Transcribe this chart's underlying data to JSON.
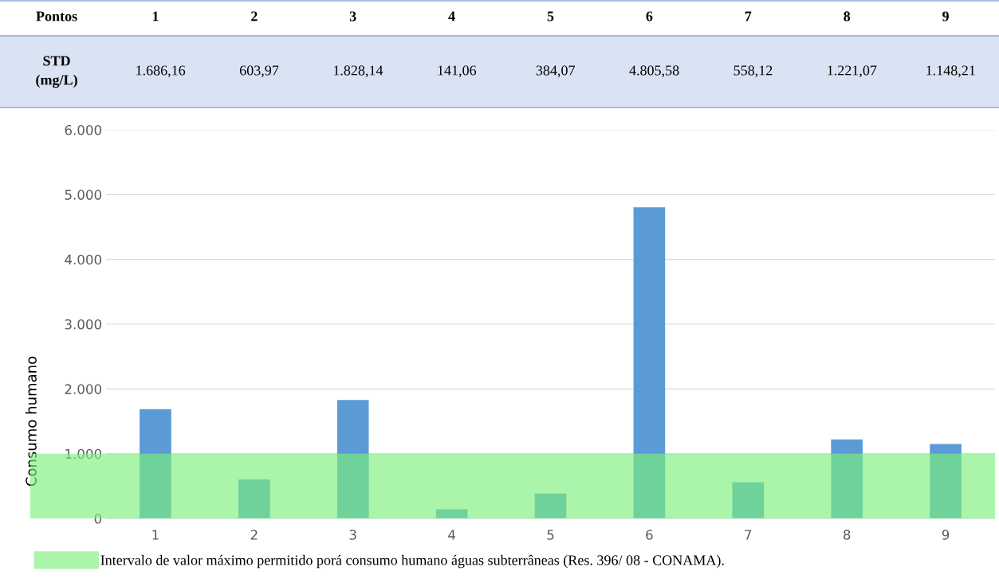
{
  "chart_data": {
    "type": "bar",
    "categories": [
      "1",
      "2",
      "3",
      "4",
      "5",
      "6",
      "7",
      "8",
      "9"
    ],
    "values": [
      1686.16,
      603.97,
      1828.14,
      141.06,
      384.07,
      4805.58,
      558.12,
      1221.07,
      1148.21
    ],
    "value_labels": [
      "1.686,16",
      "603,97",
      "1.828,14",
      "141,06",
      "384,07",
      "4.805,58",
      "558,12",
      "1.221,07",
      "1.148,21"
    ],
    "color": "#5b9bd5",
    "ylabel": "Consumo humano",
    "ylim": [
      0,
      6000
    ],
    "yticks": [
      0,
      {
        "value": 1000,
        "label": "1.000"
      },
      {
        "value": 2000,
        "label": "2.000"
      },
      {
        "value": 3000,
        "label": "3.000"
      },
      {
        "value": 4000,
        "label": "4.000"
      },
      {
        "value": 5000,
        "label": "5.000"
      },
      {
        "value": 6000,
        "label": "6.000"
      }
    ],
    "grid": "y",
    "bands": [
      {
        "axis": "y",
        "from": 0,
        "to": 1000,
        "label": "Intervalo de valor máximo permitido porá consumo humano águas subterrâneas (Res. 396/ 08 - CONAMA).",
        "color": "#7cf07c"
      }
    ],
    "legend": "bottom left",
    "annotations": [
      "Pontos",
      "STD\n(mg/L)"
    ]
  }
}
